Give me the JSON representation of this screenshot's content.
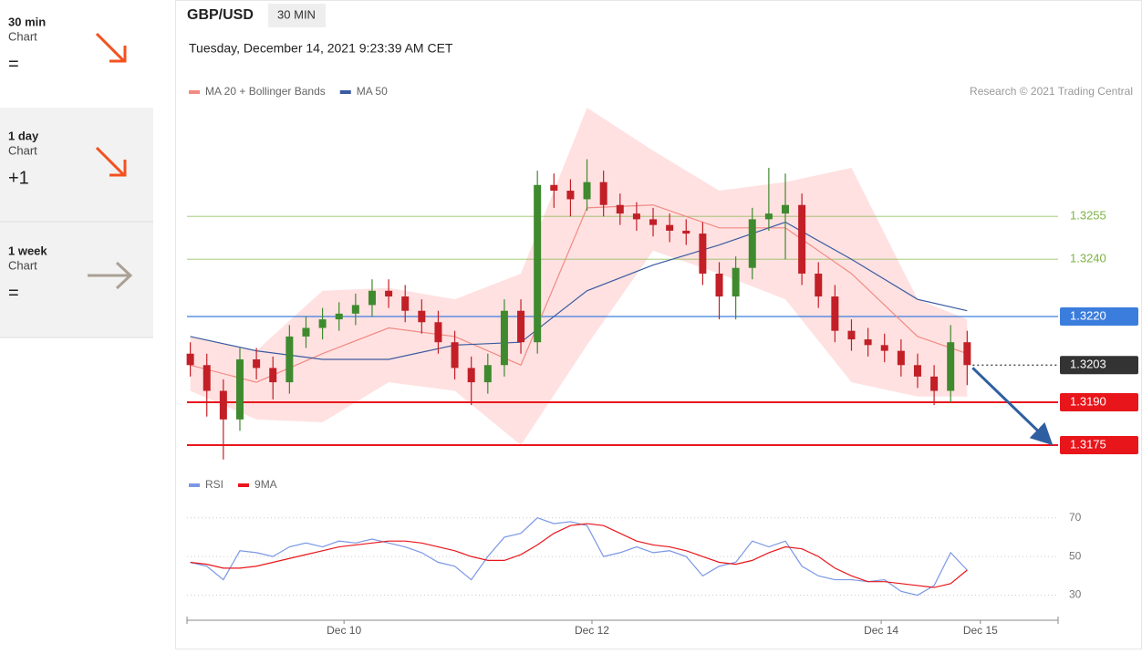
{
  "sidebar": [
    {
      "period": "30 min",
      "label": "Chart",
      "rating": "="
    },
    {
      "period": "1 day",
      "label": "Chart",
      "rating": "+1"
    },
    {
      "period": "1 week",
      "label": "Chart",
      "rating": "="
    }
  ],
  "header": {
    "symbol": "GBP/USD",
    "interval": "30 MIN",
    "timestamp": "Tuesday, December 14, 2021 9:23:39 AM CET",
    "credit": "Research © 2021 Trading Central"
  },
  "chart_data": [
    {
      "type": "candlestick",
      "up_color": "#3f8a2f",
      "down_color": "#c21f27",
      "xlim": [
        -0.2,
        52.5
      ],
      "ylim": [
        1.3168,
        1.3294
      ],
      "open": [
        1.3207,
        1.3203,
        1.3194,
        1.3184,
        1.3205,
        1.3202,
        1.3197,
        1.3213,
        1.3216,
        1.3219,
        1.3221,
        1.3224,
        1.3229,
        1.3227,
        1.3222,
        1.3218,
        1.3211,
        1.3202,
        1.3197,
        1.3203,
        1.3222,
        1.3211,
        1.3266,
        1.3264,
        1.3261,
        1.3267,
        1.3259,
        1.3256,
        1.3254,
        1.3252,
        1.325,
        1.3249,
        1.3235,
        1.3227,
        1.3237,
        1.3254,
        1.3256,
        1.3259,
        1.3235,
        1.3227,
        1.3215,
        1.3212,
        1.321,
        1.3208,
        1.3203,
        1.3199,
        1.3194,
        1.3211
      ],
      "high": [
        1.3211,
        1.3207,
        1.3198,
        1.3209,
        1.3209,
        1.3206,
        1.3217,
        1.322,
        1.3223,
        1.3225,
        1.3228,
        1.3233,
        1.3233,
        1.3231,
        1.3226,
        1.3222,
        1.3215,
        1.3206,
        1.3207,
        1.3226,
        1.3226,
        1.3271,
        1.327,
        1.3268,
        1.3275,
        1.3271,
        1.3263,
        1.326,
        1.3258,
        1.3256,
        1.3254,
        1.3253,
        1.3239,
        1.3241,
        1.3258,
        1.3272,
        1.327,
        1.3263,
        1.3239,
        1.3231,
        1.3219,
        1.3216,
        1.3214,
        1.3212,
        1.3207,
        1.3203,
        1.3217,
        1.3215
      ],
      "low": [
        1.3199,
        1.3185,
        1.317,
        1.318,
        1.3198,
        1.3191,
        1.3193,
        1.3209,
        1.3212,
        1.3215,
        1.3217,
        1.322,
        1.3223,
        1.3218,
        1.3214,
        1.3207,
        1.3198,
        1.3189,
        1.3193,
        1.3199,
        1.3207,
        1.3207,
        1.3258,
        1.3255,
        1.3257,
        1.3255,
        1.3252,
        1.325,
        1.3248,
        1.3246,
        1.3245,
        1.3231,
        1.3219,
        1.3219,
        1.3233,
        1.325,
        1.324,
        1.3231,
        1.3223,
        1.3211,
        1.3208,
        1.3206,
        1.3204,
        1.3199,
        1.3195,
        1.3189,
        1.319,
        1.3196
      ],
      "close": [
        1.3203,
        1.3194,
        1.3184,
        1.3205,
        1.3202,
        1.3197,
        1.3213,
        1.3216,
        1.3219,
        1.3221,
        1.3224,
        1.3229,
        1.3227,
        1.3222,
        1.3218,
        1.3211,
        1.3202,
        1.3197,
        1.3203,
        1.3222,
        1.3211,
        1.3266,
        1.3264,
        1.3261,
        1.3267,
        1.3259,
        1.3256,
        1.3254,
        1.3252,
        1.325,
        1.3249,
        1.3235,
        1.3227,
        1.3237,
        1.3254,
        1.3256,
        1.3259,
        1.3235,
        1.3227,
        1.3215,
        1.3212,
        1.321,
        1.3208,
        1.3203,
        1.3199,
        1.3194,
        1.3211,
        1.3203
      ],
      "series": [
        {
          "name": "MA 20 + Bollinger Bands",
          "color": "#f28a84",
          "band_color": "#ffd9d9",
          "x": [
            0,
            4,
            8,
            12,
            16,
            20,
            24,
            28,
            32,
            36,
            40,
            44,
            47
          ],
          "values": [
            1.3203,
            1.3197,
            1.3207,
            1.3216,
            1.3213,
            1.3203,
            1.3258,
            1.3259,
            1.3251,
            1.3251,
            1.3235,
            1.3213,
            1.3207
          ],
          "upper": [
            1.3213,
            1.3208,
            1.3229,
            1.323,
            1.3226,
            1.3235,
            1.3293,
            1.3278,
            1.3264,
            1.3267,
            1.3272,
            1.3226,
            1.3219
          ],
          "lower": [
            1.3194,
            1.3184,
            1.3183,
            1.3197,
            1.3194,
            1.3175,
            1.321,
            1.3243,
            1.3235,
            1.3226,
            1.3197,
            1.3192,
            1.3192
          ]
        },
        {
          "name": "MA 50",
          "color": "#3a5ba0",
          "x": [
            0,
            4,
            8,
            12,
            16,
            20,
            24,
            28,
            32,
            36,
            40,
            44,
            47
          ],
          "values": [
            1.3213,
            1.3208,
            1.3205,
            1.3205,
            1.321,
            1.3211,
            1.3229,
            1.3238,
            1.3245,
            1.3253,
            1.324,
            1.3226,
            1.3222
          ]
        }
      ],
      "levels": [
        {
          "value": 1.3255,
          "label": "1.3255",
          "color": "#7cb342",
          "boxed": false,
          "dotted": false
        },
        {
          "value": 1.324,
          "label": "1.3240",
          "color": "#7cb342",
          "boxed": false,
          "dotted": false
        },
        {
          "value": 1.322,
          "label": "1.3220",
          "color": "#3b7ddd",
          "boxed": true,
          "dotted": false
        },
        {
          "value": 1.3203,
          "label": "1.3203",
          "color": "#333333",
          "boxed": true,
          "dotted": true
        },
        {
          "value": 1.319,
          "label": "1.3190",
          "color": "#e8161b",
          "boxed": true,
          "dotted": false
        },
        {
          "value": 1.3175,
          "label": "1.3175",
          "color": "#e8161b",
          "boxed": true,
          "dotted": false
        }
      ]
    },
    {
      "type": "line",
      "xlim": [
        -0.2,
        52.5
      ],
      "ylim": [
        18,
        76
      ],
      "yticks": [
        30,
        50,
        70
      ],
      "xticks": [
        {
          "value": 9.3,
          "label": "Dec 10"
        },
        {
          "value": 24.3,
          "label": "Dec 12"
        },
        {
          "value": 41.8,
          "label": "Dec 14"
        },
        {
          "value": 47.8,
          "label": "Dec 15"
        }
      ],
      "series": [
        {
          "name": "RSI",
          "color": "#7b97e6",
          "values": [
            47,
            45,
            38,
            53,
            52,
            50,
            55,
            57,
            55,
            58,
            57,
            59,
            57,
            55,
            52,
            47,
            45,
            38,
            50,
            60,
            62,
            70,
            67,
            68,
            66,
            50,
            52,
            55,
            52,
            53,
            50,
            40,
            45,
            47,
            58,
            55,
            58,
            45,
            40,
            38,
            38,
            37,
            38,
            32,
            30,
            35,
            52,
            43
          ]
        },
        {
          "name": "9MA",
          "color": "#e8161b",
          "values": [
            47,
            46,
            44,
            44,
            45,
            47,
            49,
            51,
            53,
            55,
            56,
            57,
            58,
            58,
            57,
            55,
            53,
            50,
            48,
            48,
            51,
            56,
            62,
            66,
            67,
            66,
            62,
            58,
            56,
            55,
            53,
            50,
            47,
            46,
            48,
            52,
            55,
            54,
            50,
            44,
            40,
            37,
            37,
            36,
            35,
            34,
            36,
            43
          ]
        }
      ]
    }
  ]
}
